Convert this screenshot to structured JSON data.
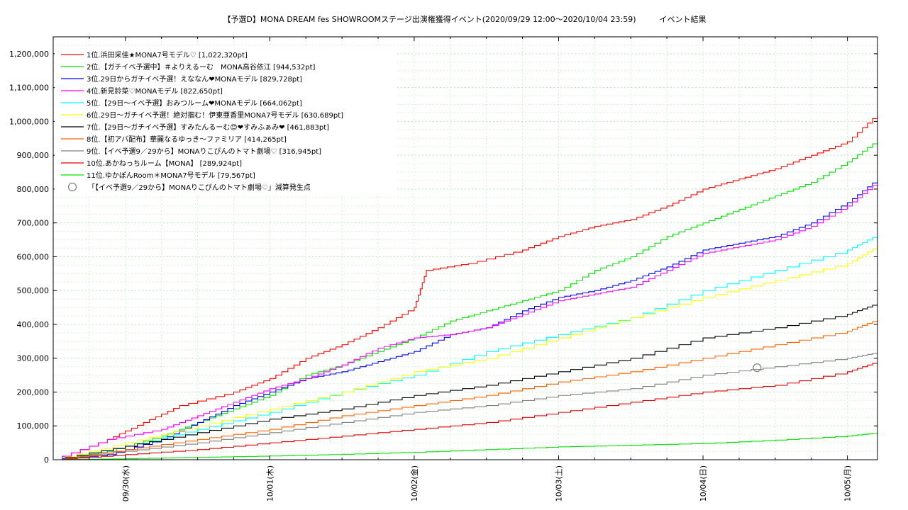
{
  "chart_data": {
    "type": "line",
    "title": "【予選D】MONA DREAM fes SHOWROOMステージ出演権獲得イベント(2020/09/29 12:00～2020/10/04 23:59)　　　イベント結果",
    "xlabel": "",
    "ylabel": "",
    "x_range": [
      "2020-09-29 12:00",
      "2020-10-05 05:00"
    ],
    "ylim": [
      0,
      1250000
    ],
    "y_ticks": [
      0,
      100000,
      200000,
      300000,
      400000,
      500000,
      600000,
      700000,
      800000,
      900000,
      1000000,
      1100000,
      1200000
    ],
    "y_tick_labels": [
      "0",
      "100,000",
      "200,000",
      "300,000",
      "400,000",
      "500,000",
      "600,000",
      "700,000",
      "800,000",
      "900,000",
      "1,000,000",
      "1,100,000",
      "1,200,000"
    ],
    "x_tick_labels": [
      "09/30(水)",
      "10/01(木)",
      "10/02(金)",
      "10/03(土)",
      "10/04(日)",
      "10/05(月)"
    ],
    "grid": true,
    "legend_position": "top-left",
    "series": [
      {
        "name": "1位.浜田采佳★MONA7号モデル♡ [1,022,320pt]",
        "color": "#ff0000",
        "x": [
          "2020-09-29 12:00",
          "2020-09-29 21:00",
          "2020-09-30 03:00",
          "2020-09-30 09:00",
          "2020-09-30 18:00",
          "2020-10-01 00:00",
          "2020-10-01 06:00",
          "2020-10-01 12:00",
          "2020-10-01 18:00",
          "2020-10-02 00:00",
          "2020-10-02 02:00",
          "2020-10-02 09:00",
          "2020-10-02 18:00",
          "2020-10-03 00:00",
          "2020-10-03 06:00",
          "2020-10-03 12:00",
          "2020-10-03 18:00",
          "2020-10-04 00:00",
          "2020-10-04 06:00",
          "2020-10-04 12:00",
          "2020-10-04 18:00",
          "2020-10-04 23:59",
          "2020-10-05 05:00"
        ],
        "y": [
          0,
          60000,
          110000,
          160000,
          200000,
          240000,
          300000,
          340000,
          390000,
          450000,
          560000,
          580000,
          620000,
          660000,
          690000,
          710000,
          750000,
          800000,
          830000,
          860000,
          900000,
          940000,
          1022320
        ]
      },
      {
        "name": "2位.【ガチイベ予選中】＃よりえるーむ　MONA高谷依江 [944,532pt]",
        "color": "#00e000",
        "x": [
          "2020-09-29 12:00",
          "2020-09-29 21:00",
          "2020-09-30 06:00",
          "2020-09-30 12:00",
          "2020-09-30 18:00",
          "2020-10-01 00:00",
          "2020-10-01 06:00",
          "2020-10-01 12:00",
          "2020-10-01 18:00",
          "2020-10-02 00:00",
          "2020-10-02 06:00",
          "2020-10-02 12:00",
          "2020-10-02 18:00",
          "2020-10-03 00:00",
          "2020-10-03 06:00",
          "2020-10-03 12:00",
          "2020-10-03 18:00",
          "2020-10-04 00:00",
          "2020-10-04 06:00",
          "2020-10-04 12:00",
          "2020-10-04 18:00",
          "2020-10-04 23:59",
          "2020-10-05 05:00"
        ],
        "y": [
          0,
          25000,
          70000,
          110000,
          150000,
          190000,
          250000,
          280000,
          320000,
          360000,
          410000,
          440000,
          470000,
          500000,
          560000,
          600000,
          660000,
          700000,
          740000,
          780000,
          820000,
          880000,
          944532
        ]
      },
      {
        "name": "3位.29日からガチイベ予選！えななん❤MONAモデル [829,728pt]",
        "color": "#0000ff",
        "x": [
          "2020-09-29 12:00",
          "2020-09-29 21:00",
          "2020-09-30 06:00",
          "2020-09-30 12:00",
          "2020-09-30 18:00",
          "2020-10-01 00:00",
          "2020-10-01 06:00",
          "2020-10-01 12:00",
          "2020-10-01 18:00",
          "2020-10-02 00:00",
          "2020-10-02 06:00",
          "2020-10-02 12:00",
          "2020-10-02 18:00",
          "2020-10-03 00:00",
          "2020-10-03 06:00",
          "2020-10-03 12:00",
          "2020-10-03 18:00",
          "2020-10-04 00:00",
          "2020-10-04 06:00",
          "2020-10-04 12:00",
          "2020-10-04 18:00",
          "2020-10-04 23:59",
          "2020-10-05 05:00"
        ],
        "y": [
          0,
          15000,
          60000,
          110000,
          160000,
          200000,
          240000,
          260000,
          290000,
          320000,
          370000,
          390000,
          440000,
          480000,
          500000,
          530000,
          570000,
          620000,
          640000,
          660000,
          700000,
          760000,
          829728
        ]
      },
      {
        "name": "4位.新見鈴菜♡MONAモデル [822,650pt]",
        "color": "#ff00ff",
        "x": [
          "2020-09-29 12:00",
          "2020-09-29 21:00",
          "2020-09-30 06:00",
          "2020-09-30 12:00",
          "2020-09-30 18:00",
          "2020-10-01 00:00",
          "2020-10-01 06:00",
          "2020-10-01 12:00",
          "2020-10-01 18:00",
          "2020-10-02 00:00",
          "2020-10-02 06:00",
          "2020-10-02 12:00",
          "2020-10-02 18:00",
          "2020-10-03 00:00",
          "2020-10-03 06:00",
          "2020-10-03 12:00",
          "2020-10-03 18:00",
          "2020-10-04 00:00",
          "2020-10-04 06:00",
          "2020-10-04 12:00",
          "2020-10-04 18:00",
          "2020-10-04 23:59",
          "2020-10-05 05:00"
        ],
        "y": [
          0,
          60000,
          90000,
          130000,
          170000,
          210000,
          240000,
          280000,
          330000,
          360000,
          370000,
          390000,
          430000,
          470000,
          490000,
          510000,
          560000,
          610000,
          630000,
          650000,
          690000,
          750000,
          822650
        ]
      },
      {
        "name": "5位.【29日～イベ予選】おみつルーム❤MONAモデル [664,062pt]",
        "color": "#00ffff",
        "x": [
          "2020-09-29 12:00",
          "2020-09-30 00:00",
          "2020-09-30 12:00",
          "2020-10-01 00:00",
          "2020-10-01 12:00",
          "2020-10-02 00:00",
          "2020-10-02 12:00",
          "2020-10-03 00:00",
          "2020-10-03 12:00",
          "2020-10-04 00:00",
          "2020-10-04 12:00",
          "2020-10-04 23:59",
          "2020-10-05 05:00"
        ],
        "y": [
          0,
          40000,
          90000,
          140000,
          200000,
          250000,
          320000,
          370000,
          420000,
          500000,
          560000,
          620000,
          664062
        ]
      },
      {
        "name": "6位.29日～ガチイベ予選！絶対掴む！伊東亜香里MONA7号モデル [630,689pt]",
        "color": "#ffff00",
        "x": [
          "2020-09-29 12:00",
          "2020-09-30 00:00",
          "2020-09-30 12:00",
          "2020-10-01 00:00",
          "2020-10-01 12:00",
          "2020-10-02 00:00",
          "2020-10-02 12:00",
          "2020-10-03 00:00",
          "2020-10-03 12:00",
          "2020-10-04 00:00",
          "2020-10-04 12:00",
          "2020-10-04 23:59",
          "2020-10-05 05:00"
        ],
        "y": [
          0,
          50000,
          100000,
          150000,
          200000,
          260000,
          300000,
          360000,
          420000,
          480000,
          530000,
          580000,
          630689
        ]
      },
      {
        "name": "7位.【29日～ガチイベ予選】すみたんるーむ😊❤すみふぁみ❤ [461,883pt]",
        "color": "#000000",
        "x": [
          "2020-09-29 12:00",
          "2020-09-30 00:00",
          "2020-09-30 12:00",
          "2020-10-01 00:00",
          "2020-10-01 12:00",
          "2020-10-02 00:00",
          "2020-10-02 12:00",
          "2020-10-03 00:00",
          "2020-10-03 12:00",
          "2020-10-04 00:00",
          "2020-10-04 12:00",
          "2020-10-04 23:59",
          "2020-10-05 05:00"
        ],
        "y": [
          0,
          40000,
          80000,
          120000,
          150000,
          190000,
          220000,
          260000,
          300000,
          360000,
          390000,
          430000,
          461883
        ]
      },
      {
        "name": "8位.【初アバ配布】華麗なるゆっき～ファミリア [414,265pt]",
        "color": "#ff6000",
        "x": [
          "2020-09-29 12:00",
          "2020-09-30 00:00",
          "2020-09-30 12:00",
          "2020-10-01 00:00",
          "2020-10-01 12:00",
          "2020-10-02 00:00",
          "2020-10-02 12:00",
          "2020-10-03 00:00",
          "2020-10-03 12:00",
          "2020-10-04 00:00",
          "2020-10-04 12:00",
          "2020-10-04 23:59",
          "2020-10-05 05:00"
        ],
        "y": [
          0,
          30000,
          60000,
          90000,
          130000,
          160000,
          190000,
          230000,
          260000,
          300000,
          340000,
          380000,
          414265
        ]
      },
      {
        "name": "9位.【イベ予選9／29から】MONAりこぴんのトマト劇場♡ [316,945pt]",
        "color": "#808080",
        "x": [
          "2020-09-29 12:00",
          "2020-09-30 00:00",
          "2020-09-30 12:00",
          "2020-10-01 00:00",
          "2020-10-01 12:00",
          "2020-10-02 00:00",
          "2020-10-02 12:00",
          "2020-10-03 00:00",
          "2020-10-03 12:00",
          "2020-10-04 00:00",
          "2020-10-04 12:00",
          "2020-10-04 23:59",
          "2020-10-05 05:00"
        ],
        "y": [
          0,
          25000,
          50000,
          80000,
          110000,
          140000,
          160000,
          190000,
          210000,
          250000,
          275000,
          300000,
          316945
        ]
      },
      {
        "name": "10位.あかねっちルーム【MONA】 [289,924pt]",
        "color": "#e00000",
        "x": [
          "2020-09-29 12:00",
          "2020-09-30 00:00",
          "2020-09-30 12:00",
          "2020-10-01 00:00",
          "2020-10-01 12:00",
          "2020-10-02 00:00",
          "2020-10-02 12:00",
          "2020-10-03 00:00",
          "2020-10-03 12:00",
          "2020-10-04 00:00",
          "2020-10-04 12:00",
          "2020-10-04 23:59",
          "2020-10-05 05:00"
        ],
        "y": [
          0,
          15000,
          30000,
          50000,
          70000,
          90000,
          110000,
          140000,
          170000,
          200000,
          220000,
          260000,
          289924
        ]
      },
      {
        "name": "11位.ゆかぽんRoom＊MONA7号モデル [79,567pt]",
        "color": "#00e000",
        "x": [
          "2020-09-29 12:00",
          "2020-09-30 00:00",
          "2020-09-30 12:00",
          "2020-10-01 00:00",
          "2020-10-01 12:00",
          "2020-10-02 00:00",
          "2020-10-02 12:00",
          "2020-10-03 00:00",
          "2020-10-03 12:00",
          "2020-10-04 00:00",
          "2020-10-04 12:00",
          "2020-10-04 23:59",
          "2020-10-05 05:00"
        ],
        "y": [
          0,
          3000,
          7000,
          11000,
          16000,
          22000,
          30000,
          38000,
          43000,
          48000,
          58000,
          70000,
          79567
        ]
      }
    ],
    "annotations": [
      {
        "label": "「【イベ予選9／29から】MONAりこぴんのトマト劇場♡」減算発生点",
        "marker": "circle",
        "color": "#808080",
        "x": "2020-10-04 09:00",
        "y": 272000
      }
    ]
  }
}
